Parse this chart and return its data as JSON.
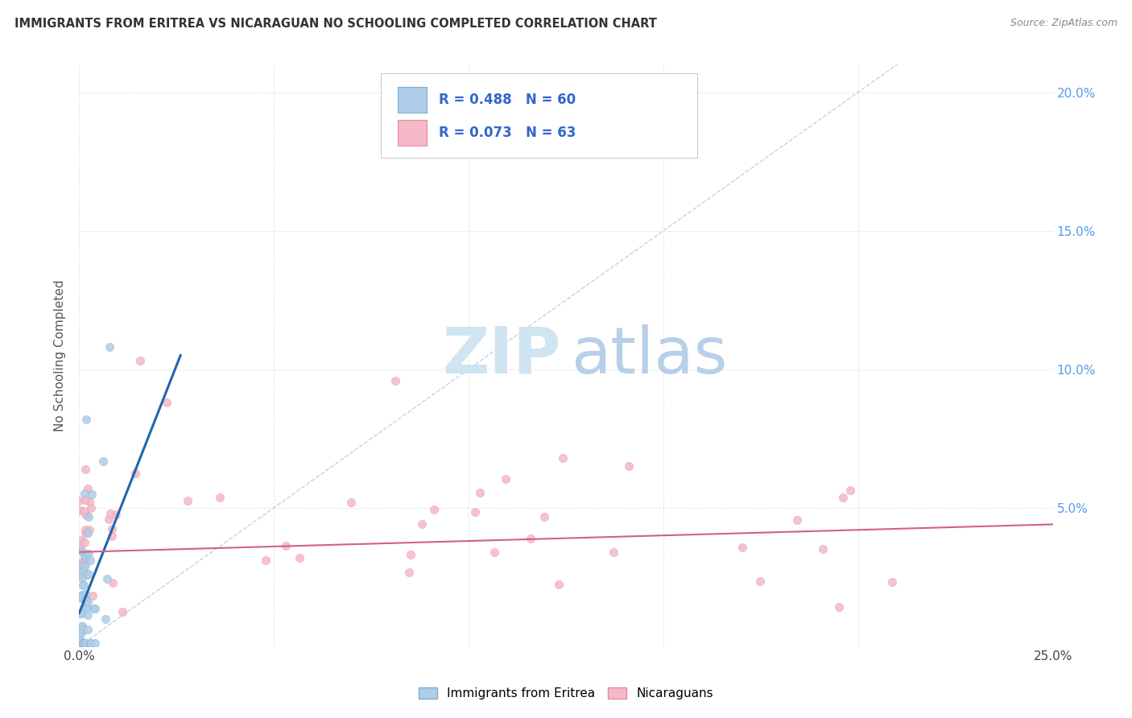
{
  "title": "IMMIGRANTS FROM ERITREA VS NICARAGUAN NO SCHOOLING COMPLETED CORRELATION CHART",
  "source": "Source: ZipAtlas.com",
  "ylabel": "No Schooling Completed",
  "xmin": 0.0,
  "xmax": 0.25,
  "ymin": 0.0,
  "ymax": 0.21,
  "series1_color": "#aecde8",
  "series2_color": "#f4b8c8",
  "series1_edge": "#7bafd4",
  "series2_edge": "#e88aa0",
  "trendline1_color": "#2166ac",
  "trendline2_color": "#d46080",
  "refline_color": "#b0c8e0",
  "background_color": "#ffffff",
  "grid_color": "#d0d0d0",
  "legend_box_color": "#e8e8e8",
  "legend_text_color": "#3366cc",
  "title_color": "#333333",
  "source_color": "#888888",
  "ylabel_color": "#555555",
  "right_tick_color": "#5599ee",
  "watermark_zip_color": "#d0e4f2",
  "watermark_atlas_color": "#b8cfe8"
}
